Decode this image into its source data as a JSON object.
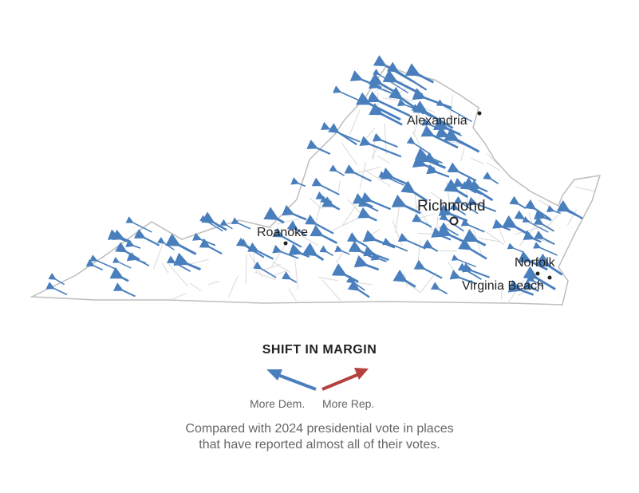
{
  "map": {
    "region": "Virginia",
    "colors": {
      "dem": "#4a7fbd",
      "rep": "#b5413f",
      "border": "#cfcfcf",
      "outline": "#bdbdbd"
    },
    "cities": [
      {
        "name": "Alexandria"
      },
      {
        "name": "Richmond"
      },
      {
        "name": "Roanoke"
      },
      {
        "name": "Norfolk"
      },
      {
        "name": "Virginia Beach"
      }
    ]
  },
  "legend": {
    "title": "SHIFT IN MARGIN",
    "dem_label": "More Dem.",
    "rep_label": "More Rep."
  },
  "note": {
    "line1": "Compared with 2024 presidential vote in places",
    "line2": "that have reported almost all of their votes."
  }
}
